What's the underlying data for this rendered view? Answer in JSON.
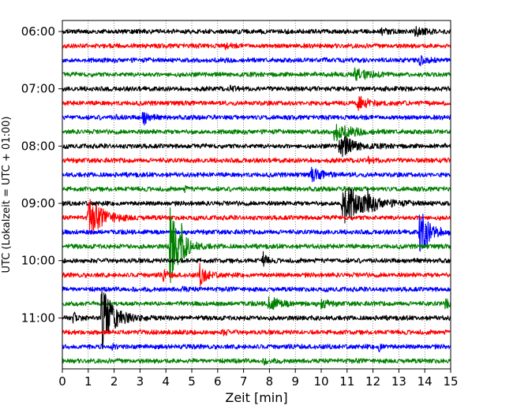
{
  "chart_data": {
    "type": "line",
    "title": "",
    "xlabel": "Zeit  [min]",
    "ylabel": "UTC (Lokalzeit = UTC + 01:00)",
    "xlim": [
      0,
      15
    ],
    "x_ticks": [
      "0",
      "1",
      "2",
      "3",
      "4",
      "5",
      "6",
      "7",
      "8",
      "9",
      "10",
      "11",
      "12",
      "13",
      "14",
      "15"
    ],
    "y_tick_labels": [
      "06:00",
      "07:00",
      "08:00",
      "09:00",
      "10:00",
      "11:00"
    ],
    "trace_interval_minutes": 15,
    "first_trace": "06:00",
    "grid": "vertical dotted lines at each minute",
    "colors": [
      "#000000",
      "#ff0000",
      "#0000ff",
      "#008000"
    ],
    "traces": [
      {
        "start": "06:00",
        "color": "#000000",
        "events": [
          {
            "t": 13.6,
            "amp": 0.25,
            "dur": 1.0
          },
          {
            "t": 12.3,
            "amp": 0.15,
            "dur": 0.6
          }
        ]
      },
      {
        "start": "06:15",
        "color": "#ff0000",
        "events": [
          {
            "t": 6.3,
            "amp": 0.15,
            "dur": 0.4
          }
        ]
      },
      {
        "start": "06:30",
        "color": "#0000ff",
        "events": [
          {
            "t": 13.8,
            "amp": 0.25,
            "dur": 0.8
          }
        ]
      },
      {
        "start": "06:45",
        "color": "#008000",
        "events": [
          {
            "t": 11.3,
            "amp": 0.35,
            "dur": 1.2
          }
        ]
      },
      {
        "start": "07:00",
        "color": "#000000",
        "events": [
          {
            "t": 6.5,
            "amp": 0.15,
            "dur": 0.5
          }
        ]
      },
      {
        "start": "07:15",
        "color": "#ff0000",
        "events": [
          {
            "t": 11.4,
            "amp": 0.35,
            "dur": 1.2
          }
        ]
      },
      {
        "start": "07:30",
        "color": "#0000ff",
        "events": [
          {
            "t": 3.1,
            "amp": 0.45,
            "dur": 0.6
          },
          {
            "t": 2.1,
            "amp": 0.15,
            "dur": 0.3
          }
        ]
      },
      {
        "start": "07:45",
        "color": "#008000",
        "events": [
          {
            "t": 10.5,
            "amp": 0.5,
            "dur": 1.6
          }
        ]
      },
      {
        "start": "08:00",
        "color": "#000000",
        "events": [
          {
            "t": 10.7,
            "amp": 0.7,
            "dur": 1.4
          }
        ]
      },
      {
        "start": "08:15",
        "color": "#ff0000",
        "events": [
          {
            "t": 11.8,
            "amp": 0.15,
            "dur": 0.5
          }
        ]
      },
      {
        "start": "08:30",
        "color": "#0000ff",
        "events": [
          {
            "t": 9.6,
            "amp": 0.35,
            "dur": 1.2
          }
        ]
      },
      {
        "start": "08:45",
        "color": "#008000",
        "events": [
          {
            "t": 4.7,
            "amp": 0.12,
            "dur": 0.4
          }
        ]
      },
      {
        "start": "09:00",
        "color": "#000000",
        "events": [
          {
            "t": 10.8,
            "amp": 1.2,
            "dur": 2.2
          },
          {
            "t": 11.8,
            "amp": 0.4,
            "dur": 0.5
          }
        ]
      },
      {
        "start": "09:15",
        "color": "#ff0000",
        "events": [
          {
            "t": 1.0,
            "amp": 1.1,
            "dur": 1.5
          }
        ]
      },
      {
        "start": "09:30",
        "color": "#0000ff",
        "events": [
          {
            "t": 13.8,
            "amp": 1.4,
            "dur": 1.0
          }
        ]
      },
      {
        "start": "09:45",
        "color": "#008000",
        "events": [
          {
            "t": 4.15,
            "amp": 2.6,
            "dur": 1.0
          },
          {
            "t": 4.6,
            "amp": 0.6,
            "dur": 0.2
          }
        ]
      },
      {
        "start": "10:00",
        "color": "#000000",
        "events": [
          {
            "t": 7.75,
            "amp": 0.6,
            "dur": 0.3
          }
        ]
      },
      {
        "start": "10:15",
        "color": "#ff0000",
        "events": [
          {
            "t": 5.3,
            "amp": 0.6,
            "dur": 0.7
          },
          {
            "t": 3.9,
            "amp": 0.3,
            "dur": 0.4
          }
        ]
      },
      {
        "start": "10:30",
        "color": "#0000ff",
        "events": [
          {
            "t": 4.6,
            "amp": 0.12,
            "dur": 0.5
          }
        ]
      },
      {
        "start": "10:45",
        "color": "#008000",
        "events": [
          {
            "t": 7.9,
            "amp": 0.45,
            "dur": 1.2
          },
          {
            "t": 10.0,
            "amp": 0.3,
            "dur": 0.6
          },
          {
            "t": 14.8,
            "amp": 0.4,
            "dur": 0.3
          }
        ]
      },
      {
        "start": "11:00",
        "color": "#000000",
        "events": [
          {
            "t": 1.5,
            "amp": 2.0,
            "dur": 1.2
          },
          {
            "t": 0.4,
            "amp": 0.4,
            "dur": 0.4
          }
        ]
      },
      {
        "start": "11:15",
        "color": "#ff0000",
        "events": [
          {
            "t": 6.2,
            "amp": 0.12,
            "dur": 0.5
          }
        ]
      },
      {
        "start": "11:30",
        "color": "#0000ff",
        "events": [
          {
            "t": 12.2,
            "amp": 0.3,
            "dur": 0.4
          },
          {
            "t": 1.9,
            "amp": 0.12,
            "dur": 0.4
          }
        ]
      },
      {
        "start": "11:45",
        "color": "#008000",
        "events": [
          {
            "t": 7.8,
            "amp": 0.12,
            "dur": 0.5
          }
        ]
      }
    ]
  }
}
